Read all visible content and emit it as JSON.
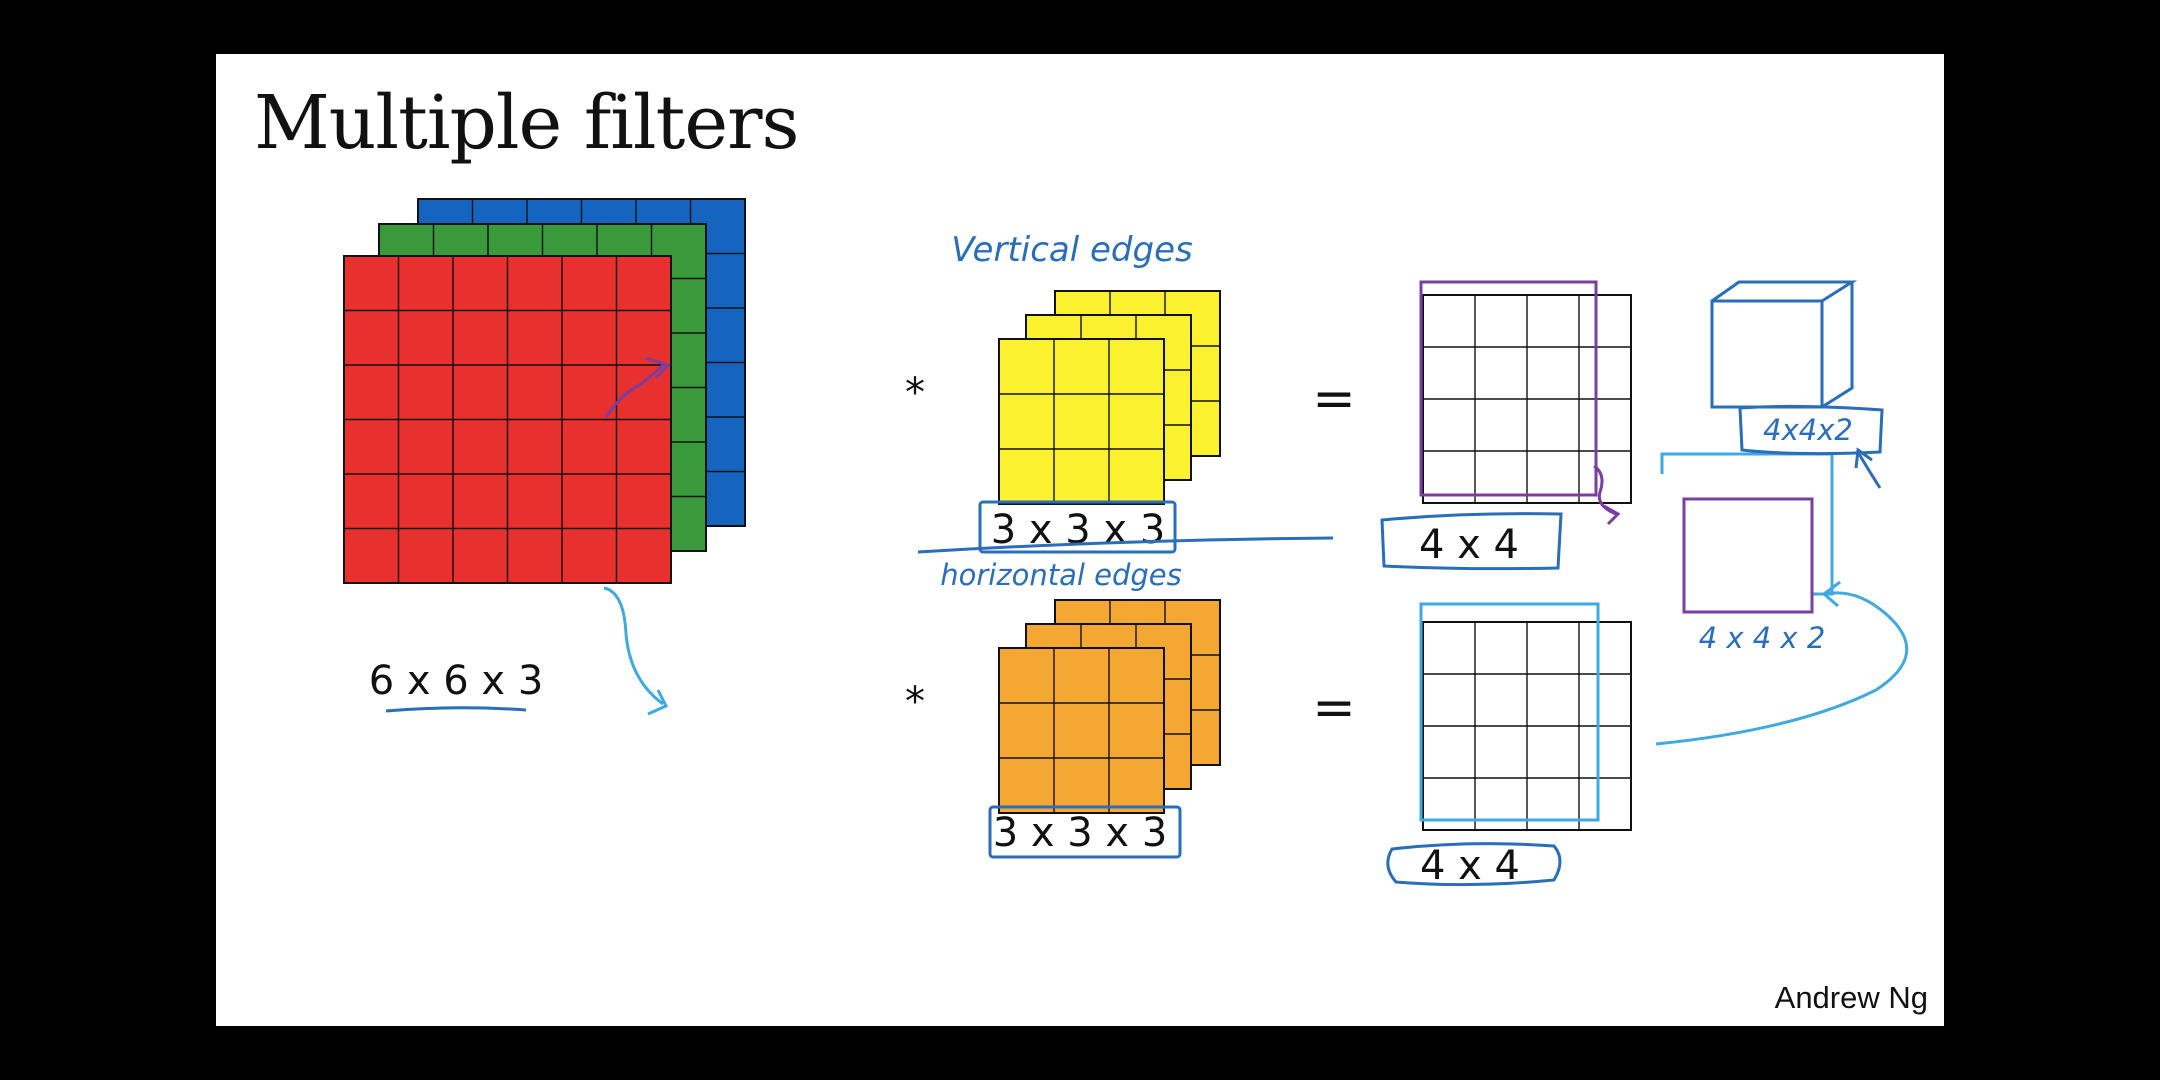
{
  "slide": {
    "title": "Multiple filters",
    "author": "Andrew Ng"
  },
  "input_volume": {
    "label": "6 x 6 x 3",
    "grid": 6,
    "channel_colors": [
      "#e8302f",
      "#3a9a3b",
      "#1565c0"
    ]
  },
  "filters": [
    {
      "label": "3 x 3 x 3",
      "annotation": "Vertical edges",
      "color": "#fbf12e",
      "grid": 3
    },
    {
      "label": "3 x 3 x 3",
      "annotation": "horizontal edges",
      "color": "#f5a733",
      "grid": 3
    }
  ],
  "outputs": [
    {
      "label": "4 x 4",
      "grid": 4
    },
    {
      "label": "4 x 4",
      "grid": 4
    }
  ],
  "operators": {
    "conv": "*",
    "equals": "="
  },
  "stacked": {
    "label": "4 x 4 x 2",
    "cube_label": "4x4x2"
  },
  "colors": {
    "ink_blue": "#2a6db8",
    "ink_purple": "#7a3ea0",
    "ink_cyan": "#3fa9e0",
    "grid_line": "#111111"
  }
}
